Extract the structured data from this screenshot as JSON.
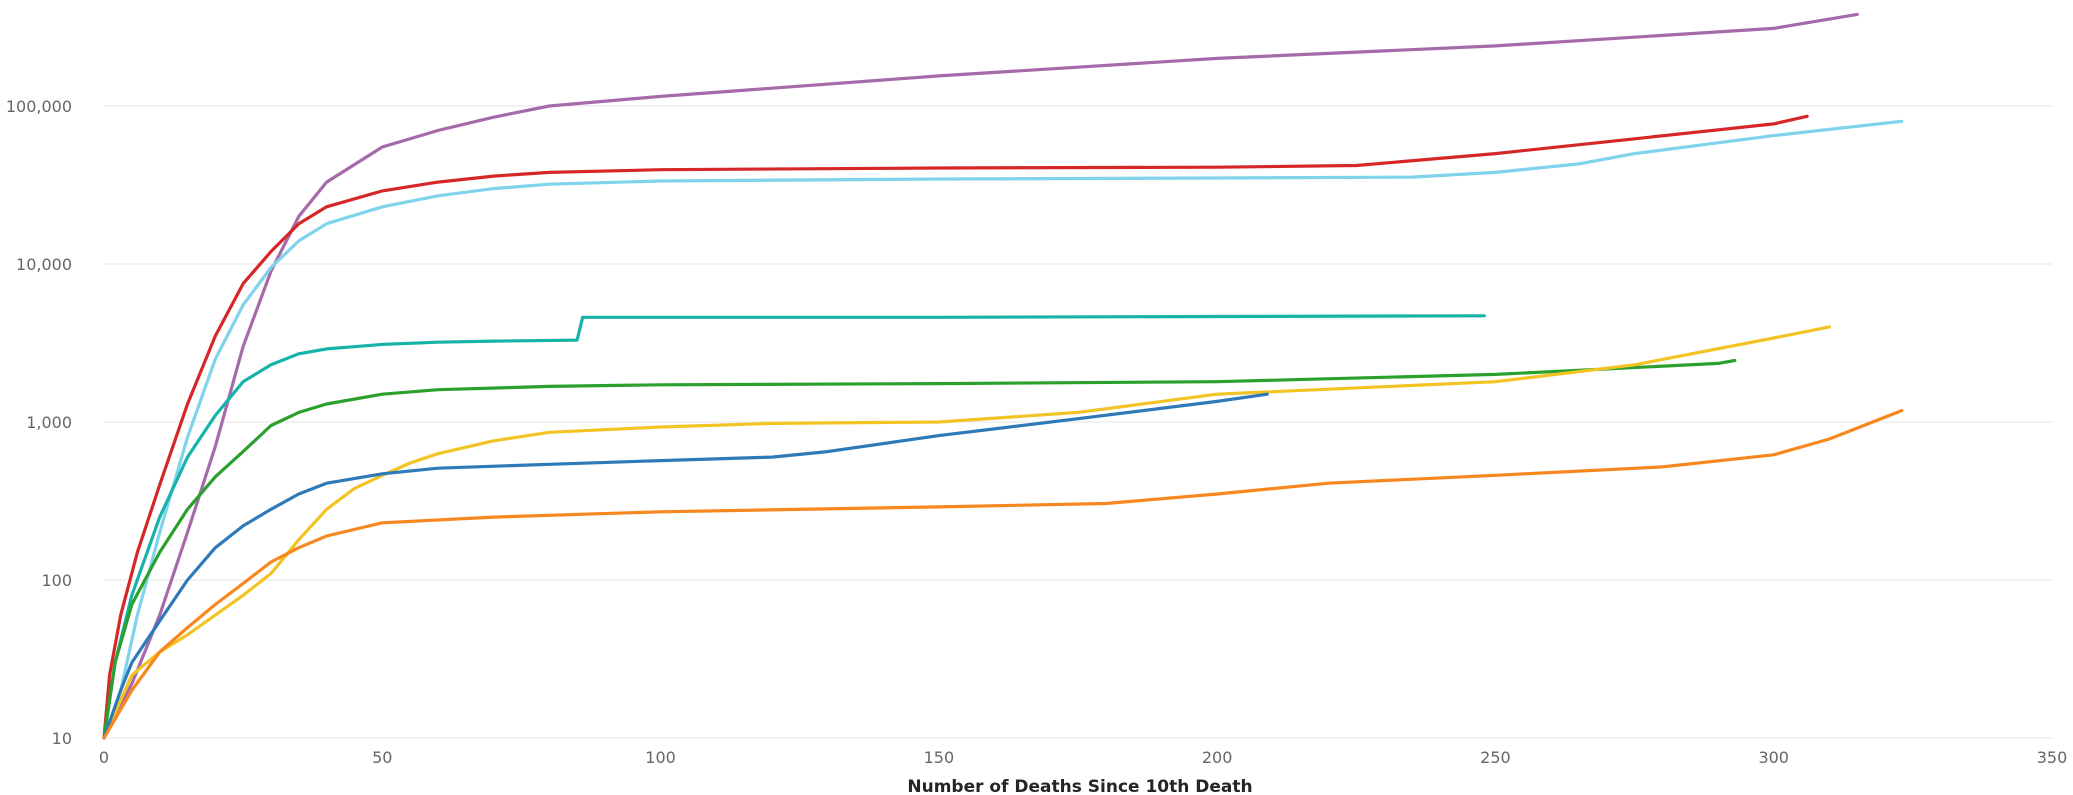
{
  "chart_data": {
    "type": "line",
    "title": "",
    "xlabel": "Number of Deaths Since 10th Death",
    "ylabel": "",
    "y_scale": "log",
    "xlim": [
      0,
      350
    ],
    "ylim": [
      10,
      400000
    ],
    "grid": "horizontal",
    "legend": "none",
    "x_ticks": [
      0,
      50,
      100,
      150,
      200,
      250,
      300,
      350
    ],
    "x_tick_labels": [
      "0",
      "50",
      "100",
      "150",
      "200",
      "250",
      "300",
      "350"
    ],
    "y_ticks": [
      10,
      100,
      1000,
      10000,
      100000
    ],
    "y_tick_labels": [
      "10",
      "100",
      "1,000",
      "10,000",
      "100,000"
    ],
    "series": [
      {
        "color": "#a66aaa",
        "points": [
          [
            0,
            10
          ],
          [
            5,
            22
          ],
          [
            10,
            60
          ],
          [
            15,
            200
          ],
          [
            20,
            700
          ],
          [
            25,
            3000
          ],
          [
            30,
            9000
          ],
          [
            35,
            20000
          ],
          [
            40,
            33000
          ],
          [
            50,
            55000
          ],
          [
            60,
            70000
          ],
          [
            70,
            85000
          ],
          [
            80,
            100000
          ],
          [
            100,
            115000
          ],
          [
            150,
            155000
          ],
          [
            200,
            200000
          ],
          [
            250,
            240000
          ],
          [
            300,
            310000
          ],
          [
            315,
            380000
          ]
        ]
      },
      {
        "color": "#d62728",
        "points": [
          [
            0,
            10
          ],
          [
            1,
            25
          ],
          [
            3,
            60
          ],
          [
            6,
            150
          ],
          [
            10,
            400
          ],
          [
            15,
            1300
          ],
          [
            20,
            3500
          ],
          [
            25,
            7500
          ],
          [
            30,
            12000
          ],
          [
            35,
            18000
          ],
          [
            40,
            23000
          ],
          [
            50,
            29000
          ],
          [
            60,
            33000
          ],
          [
            70,
            36000
          ],
          [
            80,
            38000
          ],
          [
            100,
            39500
          ],
          [
            150,
            40500
          ],
          [
            200,
            41000
          ],
          [
            225,
            42000
          ],
          [
            250,
            50000
          ],
          [
            275,
            62000
          ],
          [
            300,
            77000
          ],
          [
            306,
            86000
          ]
        ]
      },
      {
        "color": "#7fd3ec",
        "points": [
          [
            0,
            10
          ],
          [
            3,
            20
          ],
          [
            6,
            60
          ],
          [
            10,
            200
          ],
          [
            15,
            800
          ],
          [
            20,
            2500
          ],
          [
            25,
            5500
          ],
          [
            30,
            9500
          ],
          [
            35,
            14000
          ],
          [
            40,
            18000
          ],
          [
            50,
            23000
          ],
          [
            60,
            27000
          ],
          [
            70,
            30000
          ],
          [
            80,
            32000
          ],
          [
            100,
            33500
          ],
          [
            150,
            34500
          ],
          [
            200,
            35000
          ],
          [
            235,
            35500
          ],
          [
            250,
            38000
          ],
          [
            265,
            43000
          ],
          [
            275,
            50000
          ],
          [
            300,
            65000
          ],
          [
            323,
            80000
          ]
        ]
      },
      {
        "color": "#17b3a9",
        "points": [
          [
            0,
            10
          ],
          [
            2,
            30
          ],
          [
            5,
            80
          ],
          [
            10,
            250
          ],
          [
            15,
            600
          ],
          [
            20,
            1100
          ],
          [
            25,
            1800
          ],
          [
            30,
            2300
          ],
          [
            35,
            2700
          ],
          [
            40,
            2900
          ],
          [
            50,
            3100
          ],
          [
            60,
            3200
          ],
          [
            70,
            3250
          ],
          [
            85,
            3300
          ],
          [
            86,
            4600
          ],
          [
            150,
            4600
          ],
          [
            200,
            4650
          ],
          [
            248,
            4700
          ]
        ]
      },
      {
        "color": "#2ca02c",
        "points": [
          [
            0,
            10
          ],
          [
            2,
            30
          ],
          [
            5,
            70
          ],
          [
            10,
            150
          ],
          [
            15,
            280
          ],
          [
            20,
            450
          ],
          [
            25,
            650
          ],
          [
            30,
            950
          ],
          [
            35,
            1150
          ],
          [
            40,
            1300
          ],
          [
            50,
            1500
          ],
          [
            60,
            1600
          ],
          [
            80,
            1680
          ],
          [
            100,
            1720
          ],
          [
            150,
            1750
          ],
          [
            200,
            1800
          ],
          [
            250,
            2000
          ],
          [
            290,
            2350
          ],
          [
            293,
            2450
          ]
        ]
      },
      {
        "color": "#f2c423",
        "points": [
          [
            0,
            10
          ],
          [
            5,
            25
          ],
          [
            10,
            35
          ],
          [
            15,
            45
          ],
          [
            20,
            60
          ],
          [
            25,
            80
          ],
          [
            30,
            110
          ],
          [
            35,
            180
          ],
          [
            40,
            280
          ],
          [
            45,
            380
          ],
          [
            50,
            460
          ],
          [
            55,
            550
          ],
          [
            60,
            630
          ],
          [
            70,
            760
          ],
          [
            80,
            860
          ],
          [
            100,
            930
          ],
          [
            120,
            980
          ],
          [
            150,
            1000
          ],
          [
            175,
            1150
          ],
          [
            200,
            1500
          ],
          [
            250,
            1800
          ],
          [
            275,
            2300
          ],
          [
            300,
            3400
          ],
          [
            310,
            4000
          ]
        ]
      },
      {
        "color": "#2e7ab8",
        "points": [
          [
            0,
            10
          ],
          [
            3,
            20
          ],
          [
            5,
            30
          ],
          [
            10,
            55
          ],
          [
            15,
            100
          ],
          [
            20,
            160
          ],
          [
            25,
            220
          ],
          [
            30,
            280
          ],
          [
            35,
            350
          ],
          [
            40,
            410
          ],
          [
            50,
            470
          ],
          [
            60,
            510
          ],
          [
            80,
            540
          ],
          [
            100,
            570
          ],
          [
            120,
            600
          ],
          [
            130,
            650
          ],
          [
            150,
            820
          ],
          [
            175,
            1050
          ],
          [
            200,
            1350
          ],
          [
            209,
            1500
          ]
        ]
      },
      {
        "color": "#f7871e",
        "points": [
          [
            0,
            10
          ],
          [
            5,
            20
          ],
          [
            10,
            35
          ],
          [
            15,
            50
          ],
          [
            20,
            70
          ],
          [
            25,
            95
          ],
          [
            30,
            130
          ],
          [
            35,
            160
          ],
          [
            40,
            190
          ],
          [
            50,
            230
          ],
          [
            70,
            250
          ],
          [
            100,
            270
          ],
          [
            150,
            290
          ],
          [
            180,
            305
          ],
          [
            200,
            350
          ],
          [
            220,
            410
          ],
          [
            250,
            460
          ],
          [
            280,
            520
          ],
          [
            300,
            620
          ],
          [
            310,
            780
          ],
          [
            323,
            1180
          ]
        ]
      }
    ]
  }
}
